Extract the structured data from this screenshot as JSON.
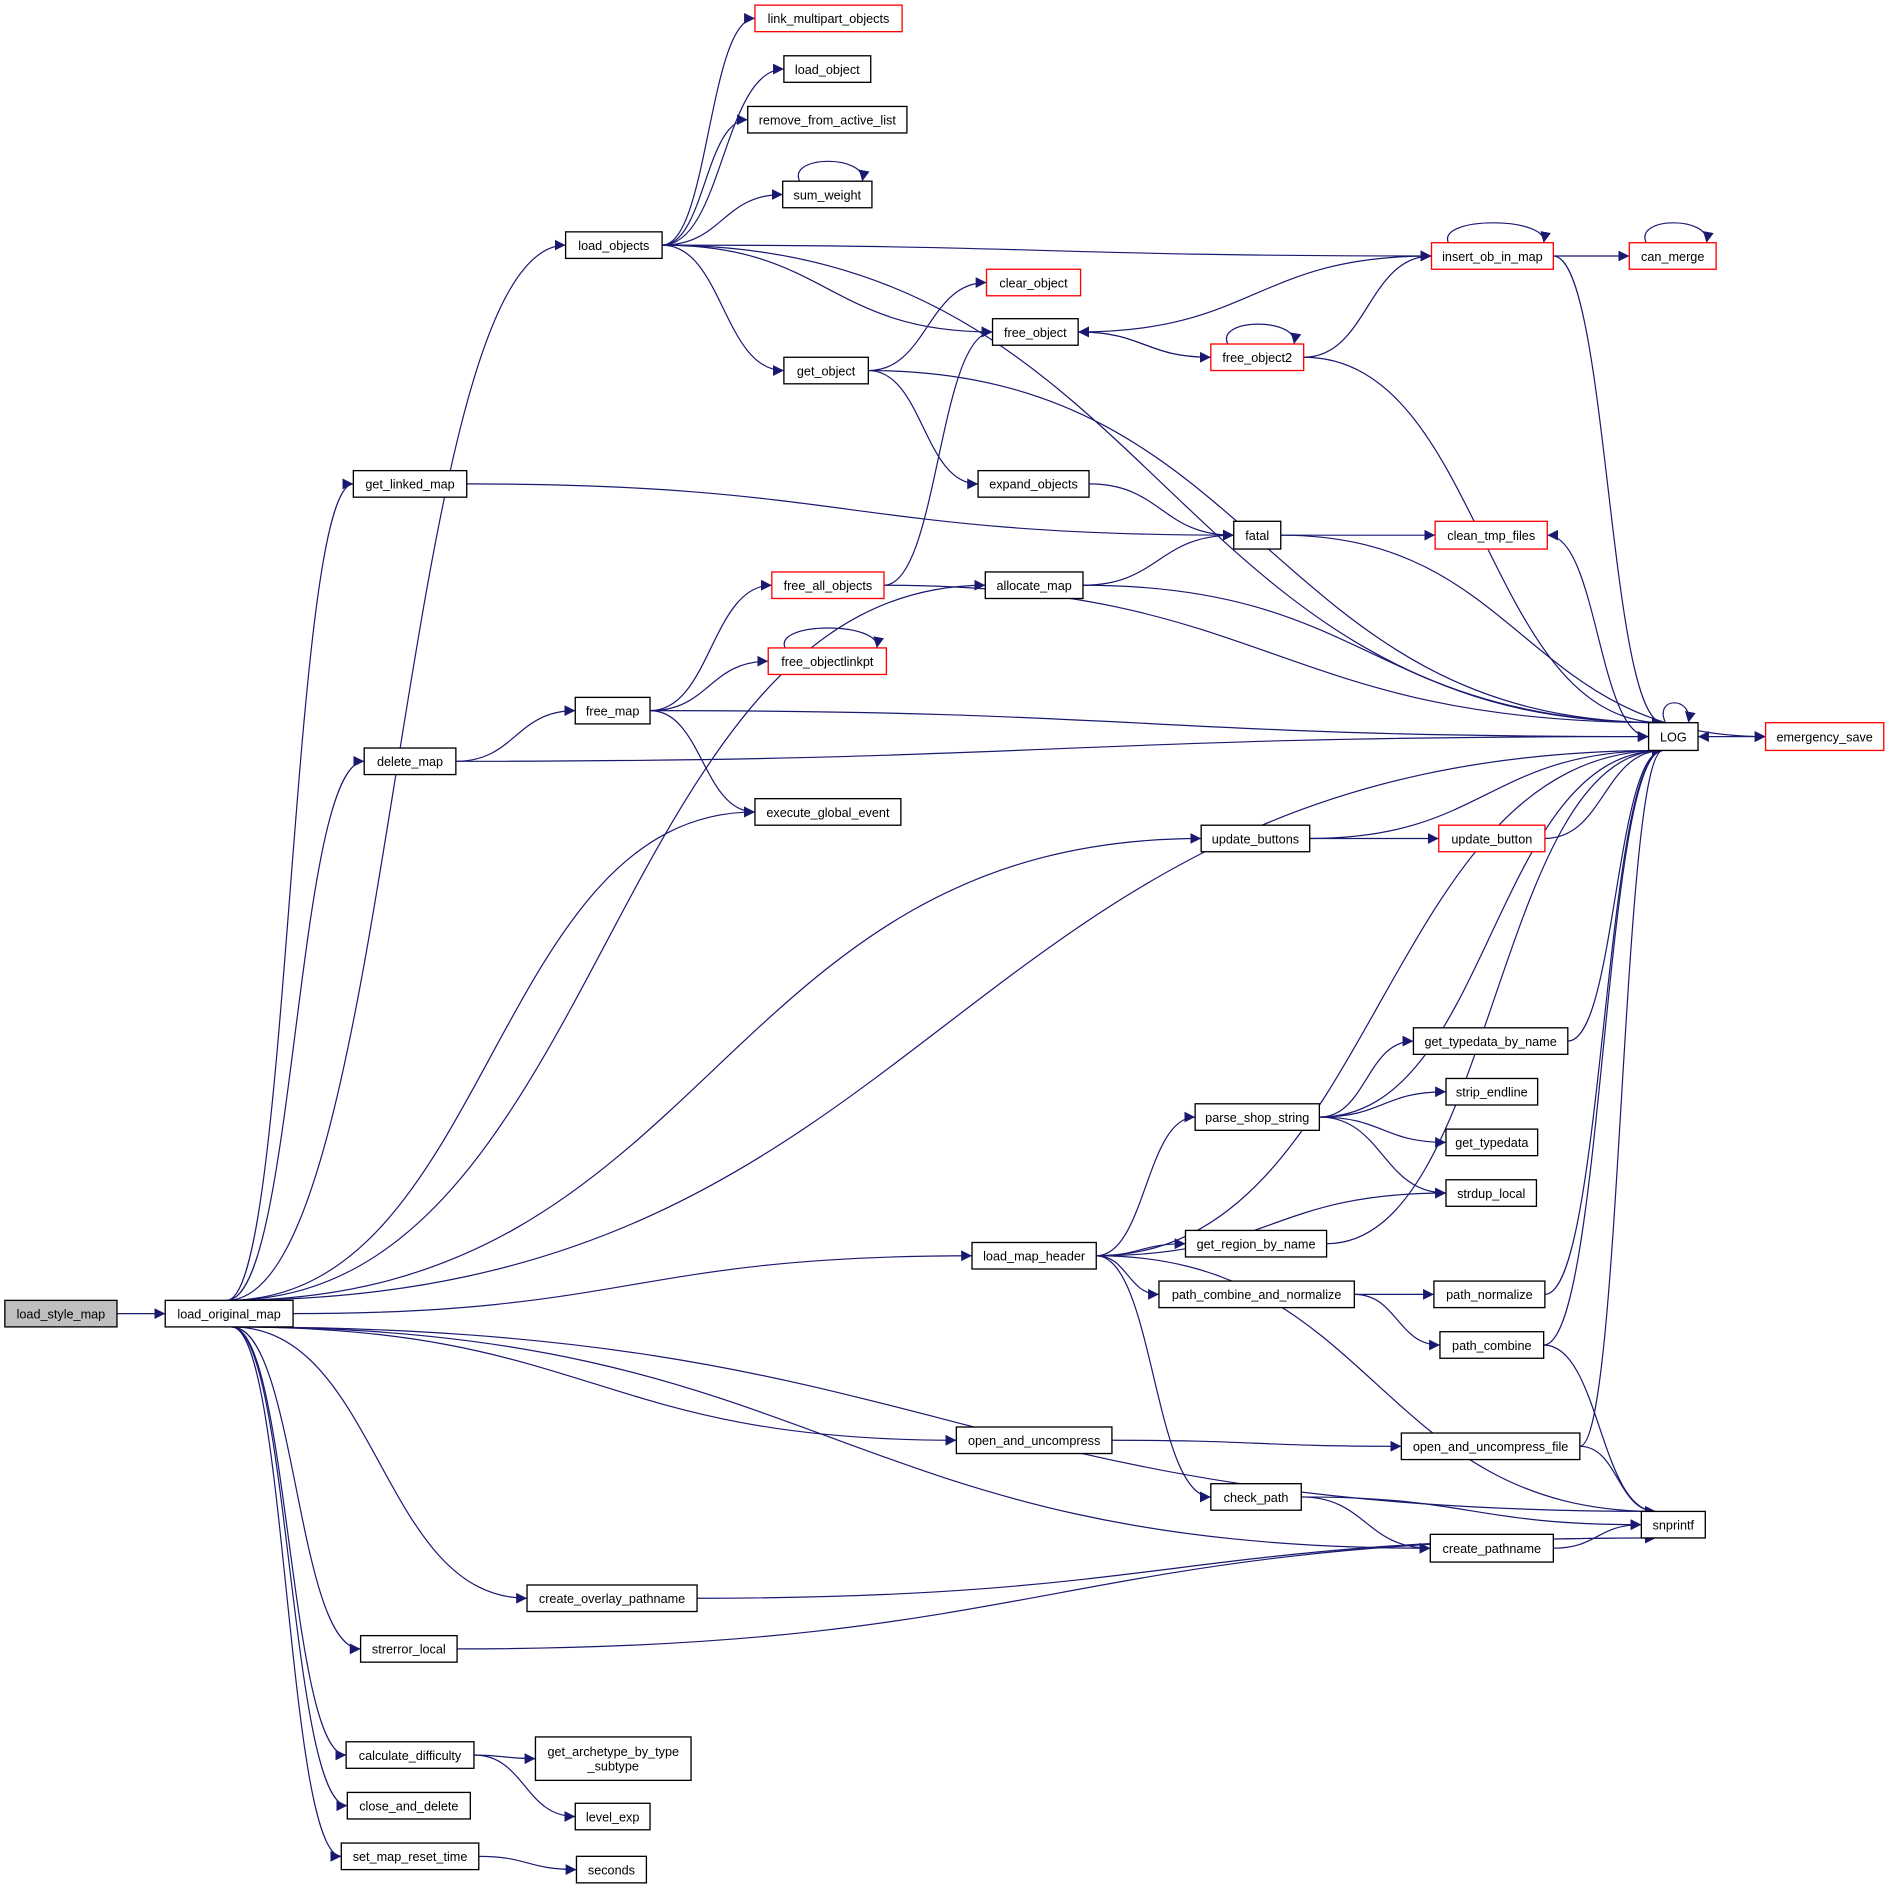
{
  "colors": {
    "edge": "#191970",
    "truncated_border": "#ff0000",
    "normal_border": "#000000",
    "root_fill": "#bfbfbf"
  },
  "nodes": [
    {
      "label": "load_style_map",
      "kind": "root"
    },
    {
      "label": "load_original_map",
      "kind": "normal"
    },
    {
      "label": "link_multipart_objects",
      "kind": "truncated"
    },
    {
      "label": "load_object",
      "kind": "normal"
    },
    {
      "label": "remove_from_active_list",
      "kind": "normal"
    },
    {
      "label": "sum_weight",
      "kind": "normal"
    },
    {
      "label": "load_objects",
      "kind": "normal"
    },
    {
      "label": "insert_ob_in_map",
      "kind": "truncated"
    },
    {
      "label": "can_merge",
      "kind": "truncated"
    },
    {
      "label": "clear_object",
      "kind": "truncated"
    },
    {
      "label": "free_object",
      "kind": "normal"
    },
    {
      "label": "free_object2",
      "kind": "truncated"
    },
    {
      "label": "get_object",
      "kind": "normal"
    },
    {
      "label": "get_linked_map",
      "kind": "normal"
    },
    {
      "label": "expand_objects",
      "kind": "normal"
    },
    {
      "label": "fatal",
      "kind": "normal"
    },
    {
      "label": "clean_tmp_files",
      "kind": "truncated"
    },
    {
      "label": "allocate_map",
      "kind": "normal"
    },
    {
      "label": "free_all_objects",
      "kind": "truncated"
    },
    {
      "label": "free_objectlinkpt",
      "kind": "truncated"
    },
    {
      "label": "free_map",
      "kind": "normal"
    },
    {
      "label": "delete_map",
      "kind": "normal"
    },
    {
      "label": "LOG",
      "kind": "normal"
    },
    {
      "label": "emergency_save",
      "kind": "truncated"
    },
    {
      "label": "execute_global_event",
      "kind": "normal"
    },
    {
      "label": "update_buttons",
      "kind": "normal"
    },
    {
      "label": "update_button",
      "kind": "truncated"
    },
    {
      "label": "get_typedata_by_name",
      "kind": "normal"
    },
    {
      "label": "strip_endline",
      "kind": "normal"
    },
    {
      "label": "parse_shop_string",
      "kind": "normal"
    },
    {
      "label": "get_typedata",
      "kind": "normal"
    },
    {
      "label": "strdup_local",
      "kind": "normal"
    },
    {
      "label": "get_region_by_name",
      "kind": "normal"
    },
    {
      "label": "load_map_header",
      "kind": "normal"
    },
    {
      "label": "path_combine_and_normalize",
      "kind": "normal"
    },
    {
      "label": "path_normalize",
      "kind": "normal"
    },
    {
      "label": "path_combine",
      "kind": "normal"
    },
    {
      "label": "open_and_uncompress",
      "kind": "normal"
    },
    {
      "label": "open_and_uncompress_file",
      "kind": "normal"
    },
    {
      "label": "check_path",
      "kind": "normal"
    },
    {
      "label": "snprintf",
      "kind": "normal"
    },
    {
      "label": "create_pathname",
      "kind": "normal"
    },
    {
      "label": "create_overlay_pathname",
      "kind": "normal"
    },
    {
      "label": "strerror_local",
      "kind": "normal"
    },
    {
      "label": "calculate_difficulty",
      "kind": "normal"
    },
    {
      "label": "get_archetype_by_type\n_subtype",
      "kind": "normal"
    },
    {
      "label": "close_and_delete",
      "kind": "normal"
    },
    {
      "label": "level_exp",
      "kind": "normal"
    },
    {
      "label": "set_map_reset_time",
      "kind": "normal"
    },
    {
      "label": "seconds",
      "kind": "normal"
    }
  ],
  "edges": [
    [
      0,
      1
    ],
    [
      1,
      6
    ],
    [
      1,
      13
    ],
    [
      1,
      17
    ],
    [
      1,
      21
    ],
    [
      1,
      24
    ],
    [
      1,
      25
    ],
    [
      1,
      22
    ],
    [
      1,
      33
    ],
    [
      1,
      37
    ],
    [
      1,
      41
    ],
    [
      1,
      42
    ],
    [
      1,
      43
    ],
    [
      1,
      40
    ],
    [
      1,
      44
    ],
    [
      1,
      46
    ],
    [
      1,
      48
    ],
    [
      6,
      2
    ],
    [
      6,
      3
    ],
    [
      6,
      4
    ],
    [
      6,
      5
    ],
    [
      6,
      7
    ],
    [
      6,
      10
    ],
    [
      6,
      12
    ],
    [
      6,
      22
    ],
    [
      5,
      5
    ],
    [
      12,
      9
    ],
    [
      12,
      22
    ],
    [
      12,
      14
    ],
    [
      7,
      7
    ],
    [
      7,
      8
    ],
    [
      7,
      10
    ],
    [
      7,
      22
    ],
    [
      8,
      8
    ],
    [
      10,
      11
    ],
    [
      11,
      11
    ],
    [
      11,
      10
    ],
    [
      11,
      7
    ],
    [
      11,
      22
    ],
    [
      13,
      15
    ],
    [
      14,
      15
    ],
    [
      17,
      15
    ],
    [
      17,
      22
    ],
    [
      15,
      16
    ],
    [
      15,
      23
    ],
    [
      22,
      16
    ],
    [
      18,
      10
    ],
    [
      18,
      22
    ],
    [
      20,
      18
    ],
    [
      20,
      19
    ],
    [
      20,
      22
    ],
    [
      20,
      24
    ],
    [
      19,
      19
    ],
    [
      21,
      20
    ],
    [
      21,
      22
    ],
    [
      25,
      22
    ],
    [
      25,
      26
    ],
    [
      26,
      22
    ],
    [
      22,
      22
    ],
    [
      22,
      23
    ],
    [
      23,
      22
    ],
    [
      33,
      22
    ],
    [
      33,
      29
    ],
    [
      33,
      31
    ],
    [
      33,
      32
    ],
    [
      33,
      34
    ],
    [
      33,
      40
    ],
    [
      33,
      39
    ],
    [
      29,
      22
    ],
    [
      29,
      27
    ],
    [
      29,
      28
    ],
    [
      29,
      30
    ],
    [
      29,
      31
    ],
    [
      27,
      22
    ],
    [
      32,
      22
    ],
    [
      34,
      35
    ],
    [
      34,
      36
    ],
    [
      35,
      22
    ],
    [
      36,
      22
    ],
    [
      36,
      40
    ],
    [
      37,
      38
    ],
    [
      38,
      22
    ],
    [
      38,
      40
    ],
    [
      39,
      40
    ],
    [
      39,
      41
    ],
    [
      41,
      40
    ],
    [
      42,
      40
    ],
    [
      43,
      40
    ],
    [
      44,
      45
    ],
    [
      44,
      47
    ],
    [
      48,
      49
    ]
  ]
}
